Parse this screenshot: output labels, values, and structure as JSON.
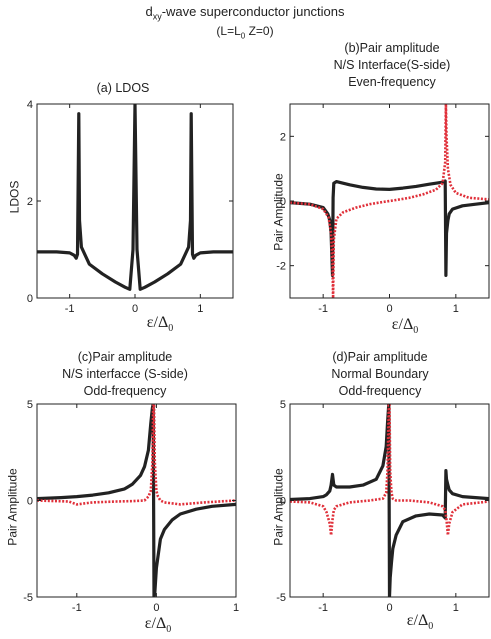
{
  "figure": {
    "title_line1_base": "d",
    "title_line1_sub": "xy",
    "title_line1_rest": "-wave superconductor junctions",
    "title_line2_a": "(L=L",
    "title_line2_sub": "0",
    "title_line2_b": " Z=0)"
  },
  "panels": [
    {
      "title_lines": [
        "(a) LDOS"
      ],
      "ylabel": "LDOS",
      "xlabel_main": "ε/Δ",
      "xlabel_sub": "0"
    },
    {
      "title_lines": [
        "(b)Pair  amplitude",
        "N/S Interface(S-side)",
        "Even-frequency"
      ],
      "ylabel": "Pair Amplitude",
      "xlabel_main": "ε/Δ",
      "xlabel_sub": "0"
    },
    {
      "title_lines": [
        "(c)Pair amplitude",
        "N/S interfacce (S-side)",
        "Odd-frequency"
      ],
      "ylabel": "Pair Amplitude",
      "xlabel_main": "ε/Δ",
      "xlabel_sub": "0"
    },
    {
      "title_lines": [
        "(d)Pair amplitude",
        "Normal Boundary",
        "Odd-frequency"
      ],
      "ylabel": "Pair Amplitude",
      "xlabel_main": "ε/Δ",
      "xlabel_sub": "0"
    }
  ],
  "colors": {
    "black_curve": "#222222",
    "red_dotted": "#e0303a",
    "axis": "#222222"
  },
  "chart_data": [
    {
      "type": "line",
      "title": "(a) LDOS",
      "ylabel": "LDOS",
      "xlim": [
        -1.5,
        1.5
      ],
      "ylim": [
        0,
        4
      ],
      "xticks": [
        -1,
        0,
        1
      ],
      "yticks": [
        0,
        2,
        4
      ],
      "series": [
        {
          "style": "solid-black",
          "x": [
            -1.5,
            -1.2,
            -1.0,
            -0.93,
            -0.9,
            -0.88,
            -0.86,
            -0.85,
            -0.82,
            -0.7,
            -0.5,
            -0.3,
            -0.15,
            -0.08,
            -0.03,
            0,
            0.03,
            0.08,
            0.15,
            0.3,
            0.5,
            0.7,
            0.82,
            0.85,
            0.86,
            0.88,
            0.9,
            0.93,
            1.0,
            1.2,
            1.5
          ],
          "y": [
            0.95,
            0.95,
            0.93,
            0.88,
            0.82,
            0.9,
            3.8,
            1.6,
            1.05,
            0.7,
            0.5,
            0.33,
            0.22,
            0.18,
            1.0,
            4.0,
            1.0,
            0.18,
            0.22,
            0.33,
            0.5,
            0.7,
            1.05,
            1.6,
            3.8,
            0.9,
            0.82,
            0.88,
            0.93,
            0.95,
            0.95
          ]
        }
      ]
    },
    {
      "type": "line",
      "title": "(b)Pair amplitude N/S Interface(S-side) Even-frequency",
      "ylabel": "Pair Amplitude",
      "xlim": [
        -1.5,
        1.5
      ],
      "ylim": [
        -3,
        3
      ],
      "xticks": [
        -1,
        0,
        1
      ],
      "yticks": [
        -2,
        0,
        2
      ],
      "series": [
        {
          "style": "solid-black",
          "x": [
            -1.5,
            -1.2,
            -1.0,
            -0.93,
            -0.9,
            -0.88,
            -0.86,
            -0.85,
            -0.84,
            -0.8,
            -0.6,
            -0.4,
            -0.2,
            0,
            0.2,
            0.4,
            0.6,
            0.8,
            0.84,
            0.85,
            0.86,
            0.88,
            0.9,
            0.95,
            1.1,
            1.3,
            1.5
          ],
          "y": [
            -0.05,
            -0.1,
            -0.2,
            -0.4,
            -0.6,
            -1.0,
            -2.3,
            0.1,
            0.55,
            0.6,
            0.5,
            0.42,
            0.37,
            0.36,
            0.4,
            0.45,
            0.52,
            0.58,
            0.62,
            -2.3,
            -1.0,
            -0.6,
            -0.4,
            -0.25,
            -0.15,
            -0.1,
            -0.05
          ]
        },
        {
          "style": "dotted-red",
          "x": [
            -1.5,
            -1.2,
            -1.0,
            -0.92,
            -0.88,
            -0.86,
            -0.85,
            -0.84,
            -0.8,
            -0.7,
            -0.5,
            -0.3,
            -0.1,
            0,
            0.1,
            0.3,
            0.5,
            0.7,
            0.8,
            0.84,
            0.85,
            0.86,
            0.88,
            0.92,
            1.0,
            1.2,
            1.5
          ],
          "y": [
            -0.05,
            -0.1,
            -0.25,
            -0.5,
            -1.0,
            -2.0,
            -3.0,
            -1.2,
            -0.55,
            -0.35,
            -0.2,
            -0.1,
            -0.03,
            0.0,
            0.03,
            0.1,
            0.2,
            0.35,
            0.55,
            1.2,
            3.0,
            2.0,
            1.0,
            0.5,
            0.25,
            0.1,
            0.05
          ]
        }
      ]
    },
    {
      "type": "line",
      "title": "(c)Pair amplitude N/S interfacce (S-side) Odd-frequency",
      "ylabel": "Pair Amplitude",
      "xlim": [
        -1.5,
        1.0
      ],
      "ylim": [
        -5,
        5
      ],
      "xticks": [
        -1,
        0,
        1
      ],
      "yticks": [
        -5,
        0,
        5
      ],
      "series": [
        {
          "style": "solid-black",
          "x": [
            -1.5,
            -1.2,
            -1.0,
            -0.8,
            -0.6,
            -0.4,
            -0.3,
            -0.2,
            -0.15,
            -0.1,
            -0.07,
            -0.05,
            -0.04,
            -0.03,
            -0.02,
            0.0,
            0.05,
            0.1,
            0.2,
            0.3,
            0.5,
            0.7,
            1.0
          ],
          "y": [
            0.1,
            0.15,
            0.2,
            0.28,
            0.4,
            0.6,
            0.85,
            1.3,
            1.75,
            2.6,
            4.0,
            4.8,
            5.0,
            -5.0,
            -4.8,
            -3.5,
            -2.0,
            -1.5,
            -1.0,
            -0.7,
            -0.45,
            -0.3,
            -0.2
          ]
        },
        {
          "style": "dotted-red",
          "x": [
            -1.5,
            -1.1,
            -1.0,
            -0.8,
            -0.5,
            -0.3,
            -0.15,
            -0.1,
            -0.07,
            -0.05,
            -0.04,
            -0.03,
            -0.02,
            0.0,
            0.02,
            0.05,
            0.1,
            0.3,
            0.6,
            1.0
          ],
          "y": [
            0.0,
            -0.05,
            -0.2,
            -0.1,
            -0.05,
            -0.03,
            0.0,
            0.2,
            0.5,
            2.0,
            5.0,
            5.0,
            2.0,
            0.5,
            0.2,
            0.0,
            -0.1,
            -0.2,
            -0.1,
            0.0
          ]
        }
      ]
    },
    {
      "type": "line",
      "title": "(d)Pair amplitude Normal Boundary Odd-frequency",
      "ylabel": "Pair Amplitude",
      "xlim": [
        -1.5,
        1.5
      ],
      "ylim": [
        -5,
        5
      ],
      "xticks": [
        -1,
        0,
        1
      ],
      "yticks": [
        -5,
        0,
        5
      ],
      "series": [
        {
          "style": "solid-black",
          "x": [
            -1.5,
            -1.2,
            -1.0,
            -0.95,
            -0.9,
            -0.88,
            -0.86,
            -0.84,
            -0.8,
            -0.6,
            -0.4,
            -0.2,
            -0.1,
            -0.05,
            -0.03,
            -0.01,
            0.0,
            0.01,
            0.03,
            0.05,
            0.1,
            0.2,
            0.4,
            0.6,
            0.8,
            0.84,
            0.85,
            0.86,
            0.88,
            0.9,
            0.95,
            1.1,
            1.5
          ],
          "y": [
            0.05,
            0.1,
            0.2,
            0.3,
            0.5,
            0.8,
            1.35,
            0.8,
            0.7,
            0.7,
            0.8,
            1.1,
            1.8,
            2.8,
            4.0,
            5.0,
            -5.0,
            -4.0,
            -3.2,
            -2.5,
            -1.8,
            -1.1,
            -0.8,
            -0.7,
            -0.75,
            -0.9,
            1.55,
            1.1,
            0.8,
            0.55,
            0.35,
            0.2,
            0.1
          ]
        },
        {
          "style": "dotted-red",
          "x": [
            -1.5,
            -1.2,
            -1.0,
            -0.95,
            -0.9,
            -0.88,
            -0.86,
            -0.84,
            -0.8,
            -0.6,
            -0.3,
            -0.1,
            -0.05,
            -0.03,
            -0.01,
            0.0,
            0.01,
            0.03,
            0.05,
            0.1,
            0.3,
            0.6,
            0.8,
            0.84,
            0.86,
            0.88,
            0.9,
            0.95,
            1.1,
            1.5
          ],
          "y": [
            -0.05,
            -0.1,
            -0.3,
            -0.6,
            -1.2,
            -1.8,
            -1.0,
            -0.5,
            -0.3,
            -0.1,
            0.0,
            0.1,
            0.4,
            1.5,
            5.0,
            5.0,
            1.5,
            0.4,
            0.1,
            0.0,
            0.0,
            -0.1,
            -0.3,
            -0.5,
            -1.0,
            -1.8,
            -1.2,
            -0.6,
            -0.2,
            -0.05
          ]
        }
      ]
    }
  ]
}
